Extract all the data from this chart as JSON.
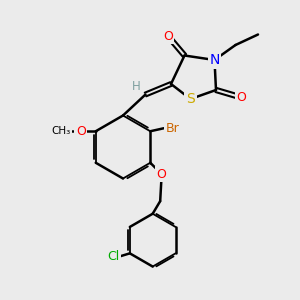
{
  "bg_color": "#ebebeb",
  "bond_color": "#000000",
  "bond_width": 1.8,
  "atom_colors": {
    "O": "#ff0000",
    "N": "#0000ff",
    "S": "#ccaa00",
    "Br": "#cc6600",
    "Cl": "#00aa00",
    "H": "#7fa0a0",
    "C": "#000000"
  },
  "font_size": 9,
  "fig_size": [
    3.0,
    3.0
  ],
  "dpi": 100
}
